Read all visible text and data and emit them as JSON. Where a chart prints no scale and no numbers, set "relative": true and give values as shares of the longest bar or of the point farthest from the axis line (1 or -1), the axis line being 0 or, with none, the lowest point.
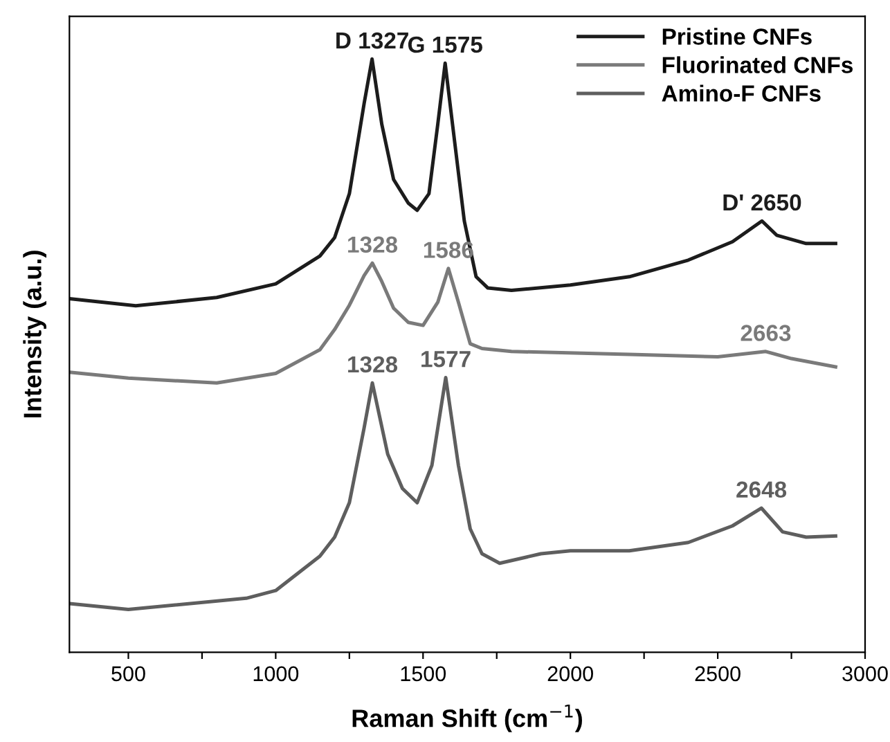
{
  "chart_data": {
    "type": "line",
    "relative": true,
    "xlabel": "Raman Shift (cm$^{−1}$)",
    "ylabel": "Intensity (a.u.)",
    "xlim": [
      300,
      3000
    ],
    "xticks": [
      500,
      {
        "value": 750,
        "label": null
      },
      1000,
      {
        "value": 1250,
        "label": null
      },
      1500,
      {
        "value": 1750,
        "label": null
      },
      2000,
      {
        "value": 2250,
        "label": null
      },
      2500,
      {
        "value": 2750,
        "label": null
      },
      3000
    ],
    "grid": false,
    "legend": "top right",
    "marker": "none",
    "line_style": "solid",
    "series": [
      {
        "name": "Pristine CNFs",
        "color": "#1c1c1c",
        "x": [
          300,
          525,
          800,
          1000,
          1150,
          1200,
          1250,
          1300,
          1327,
          1360,
          1400,
          1450,
          1480,
          1520,
          1550,
          1575,
          1600,
          1640,
          1680,
          1720,
          1800,
          2000,
          2200,
          2400,
          2550,
          2650,
          2700,
          2800,
          2900
        ],
        "values": [
          0.596,
          0.584,
          0.598,
          0.621,
          0.668,
          0.699,
          0.773,
          0.925,
          1.0,
          0.89,
          0.797,
          0.757,
          0.745,
          0.773,
          0.89,
          0.993,
          0.89,
          0.727,
          0.633,
          0.614,
          0.61,
          0.619,
          0.633,
          0.661,
          0.692,
          0.727,
          0.703,
          0.689,
          0.689
        ]
      },
      {
        "name": "Fluorinated CNFs",
        "color": "#7a7a7a",
        "x": [
          300,
          500,
          800,
          1000,
          1150,
          1200,
          1250,
          1300,
          1328,
          1360,
          1400,
          1450,
          1500,
          1550,
          1586,
          1620,
          1660,
          1700,
          1800,
          2200,
          2500,
          2663,
          2750,
          2900
        ],
        "values": [
          0.472,
          0.462,
          0.454,
          0.47,
          0.51,
          0.544,
          0.585,
          0.635,
          0.656,
          0.625,
          0.58,
          0.556,
          0.551,
          0.59,
          0.647,
          0.59,
          0.52,
          0.512,
          0.507,
          0.502,
          0.498,
          0.507,
          0.495,
          0.481
        ]
      },
      {
        "name": "Amino-F CNFs",
        "color": "#5e5e5e",
        "x": [
          300,
          500,
          900,
          1000,
          1150,
          1200,
          1250,
          1300,
          1328,
          1380,
          1430,
          1480,
          1530,
          1577,
          1620,
          1660,
          1700,
          1760,
          1900,
          2000,
          2200,
          2400,
          2550,
          2648,
          2720,
          2800,
          2900
        ],
        "values": [
          0.082,
          0.072,
          0.091,
          0.104,
          0.162,
          0.194,
          0.252,
          0.378,
          0.454,
          0.334,
          0.276,
          0.252,
          0.315,
          0.463,
          0.315,
          0.208,
          0.166,
          0.15,
          0.166,
          0.171,
          0.171,
          0.185,
          0.213,
          0.243,
          0.203,
          0.194,
          0.196
        ]
      }
    ],
    "annotations": [
      {
        "text": "D 1327",
        "x": 1327,
        "y": 1.0
      },
      {
        "text": "G 1575",
        "x": 1575,
        "y": 0.993
      },
      {
        "text": "D' 2650",
        "x": 2650,
        "y": 0.727
      },
      {
        "text": "1328",
        "x": 1328,
        "y": 0.656
      },
      {
        "text": "1586",
        "x": 1586,
        "y": 0.647
      },
      {
        "text": "2663",
        "x": 2663,
        "y": 0.507
      },
      {
        "text": "1328",
        "x": 1328,
        "y": 0.454
      },
      {
        "text": "1577",
        "x": 1577,
        "y": 0.463
      },
      {
        "text": "2648",
        "x": 2648,
        "y": 0.243
      }
    ]
  }
}
